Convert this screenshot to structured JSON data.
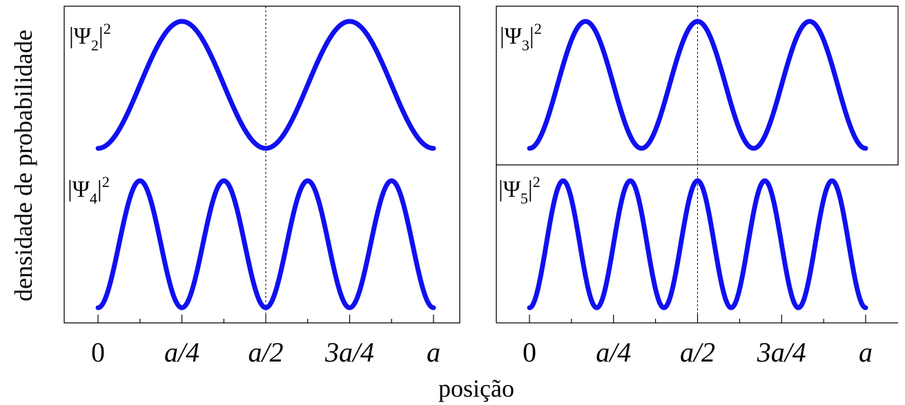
{
  "chart_data": {
    "type": "line",
    "ylabel": "densidade de probabilidade",
    "xlabel": "posição",
    "line_color": "#1010f0",
    "x_ticks": [
      "0",
      "a/4",
      "a/2",
      "3a/4",
      "a"
    ],
    "x_tick_values": [
      0,
      0.25,
      0.5,
      0.75,
      1
    ],
    "xlim": [
      0,
      1
    ],
    "y_ticks_shown": false,
    "divider_at": 0.5,
    "formula": "sin^2(n*pi*x/a)",
    "panels": [
      {
        "label_base": "|Ψ",
        "label_sub": "2",
        "label_sup": "2",
        "n": 2
      },
      {
        "label_base": "|Ψ",
        "label_sub": "3",
        "label_sup": "2",
        "n": 3
      },
      {
        "label_base": "|Ψ",
        "label_sub": "4",
        "label_sup": "2",
        "n": 4
      },
      {
        "label_base": "|Ψ",
        "label_sub": "5",
        "label_sup": "2",
        "n": 5
      }
    ]
  }
}
